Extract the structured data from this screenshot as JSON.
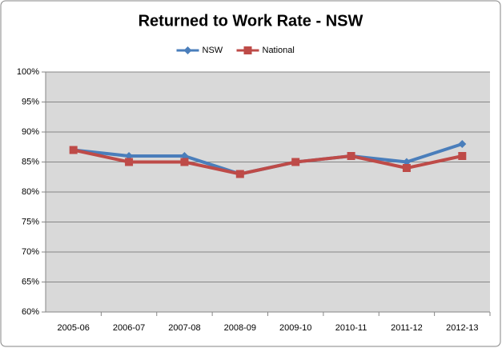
{
  "chart_data": {
    "type": "line",
    "title": "Returned to Work Rate - NSW",
    "categories": [
      "2005-06",
      "2006-07",
      "2007-08",
      "2008-09",
      "2009-10",
      "2010-11",
      "2011-12",
      "2012-13"
    ],
    "series": [
      {
        "name": "NSW",
        "color": "#4a7ebb",
        "marker": "diamond",
        "values": [
          87,
          86,
          86,
          83,
          85,
          86,
          85,
          88
        ]
      },
      {
        "name": "National",
        "color": "#be4b48",
        "marker": "square",
        "values": [
          87,
          85,
          85,
          83,
          85,
          86,
          84,
          86
        ]
      }
    ],
    "ylim": [
      60,
      100
    ],
    "yticks": [
      {
        "value": 60,
        "label": "60%"
      },
      {
        "value": 65,
        "label": "65%"
      },
      {
        "value": 70,
        "label": "70%"
      },
      {
        "value": 75,
        "label": "75%"
      },
      {
        "value": 80,
        "label": "80%"
      },
      {
        "value": 85,
        "label": "85%"
      },
      {
        "value": 90,
        "label": "90%"
      },
      {
        "value": 95,
        "label": "95%"
      },
      {
        "value": 100,
        "label": "100%"
      }
    ],
    "grid": true,
    "legend": "top"
  }
}
